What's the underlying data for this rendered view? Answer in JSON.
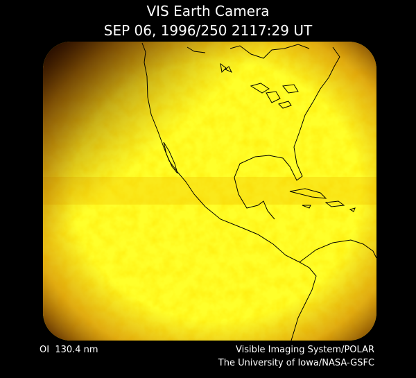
{
  "header": {
    "title": "VIS Earth Camera",
    "timestamp": "SEP 06, 1996/250 2117:29 UT"
  },
  "footer": {
    "filter": "OI  130.4 nm",
    "instrument": "Visible Imaging System/POLAR",
    "institution": "The University of Iowa/NASA-GSFC"
  }
}
